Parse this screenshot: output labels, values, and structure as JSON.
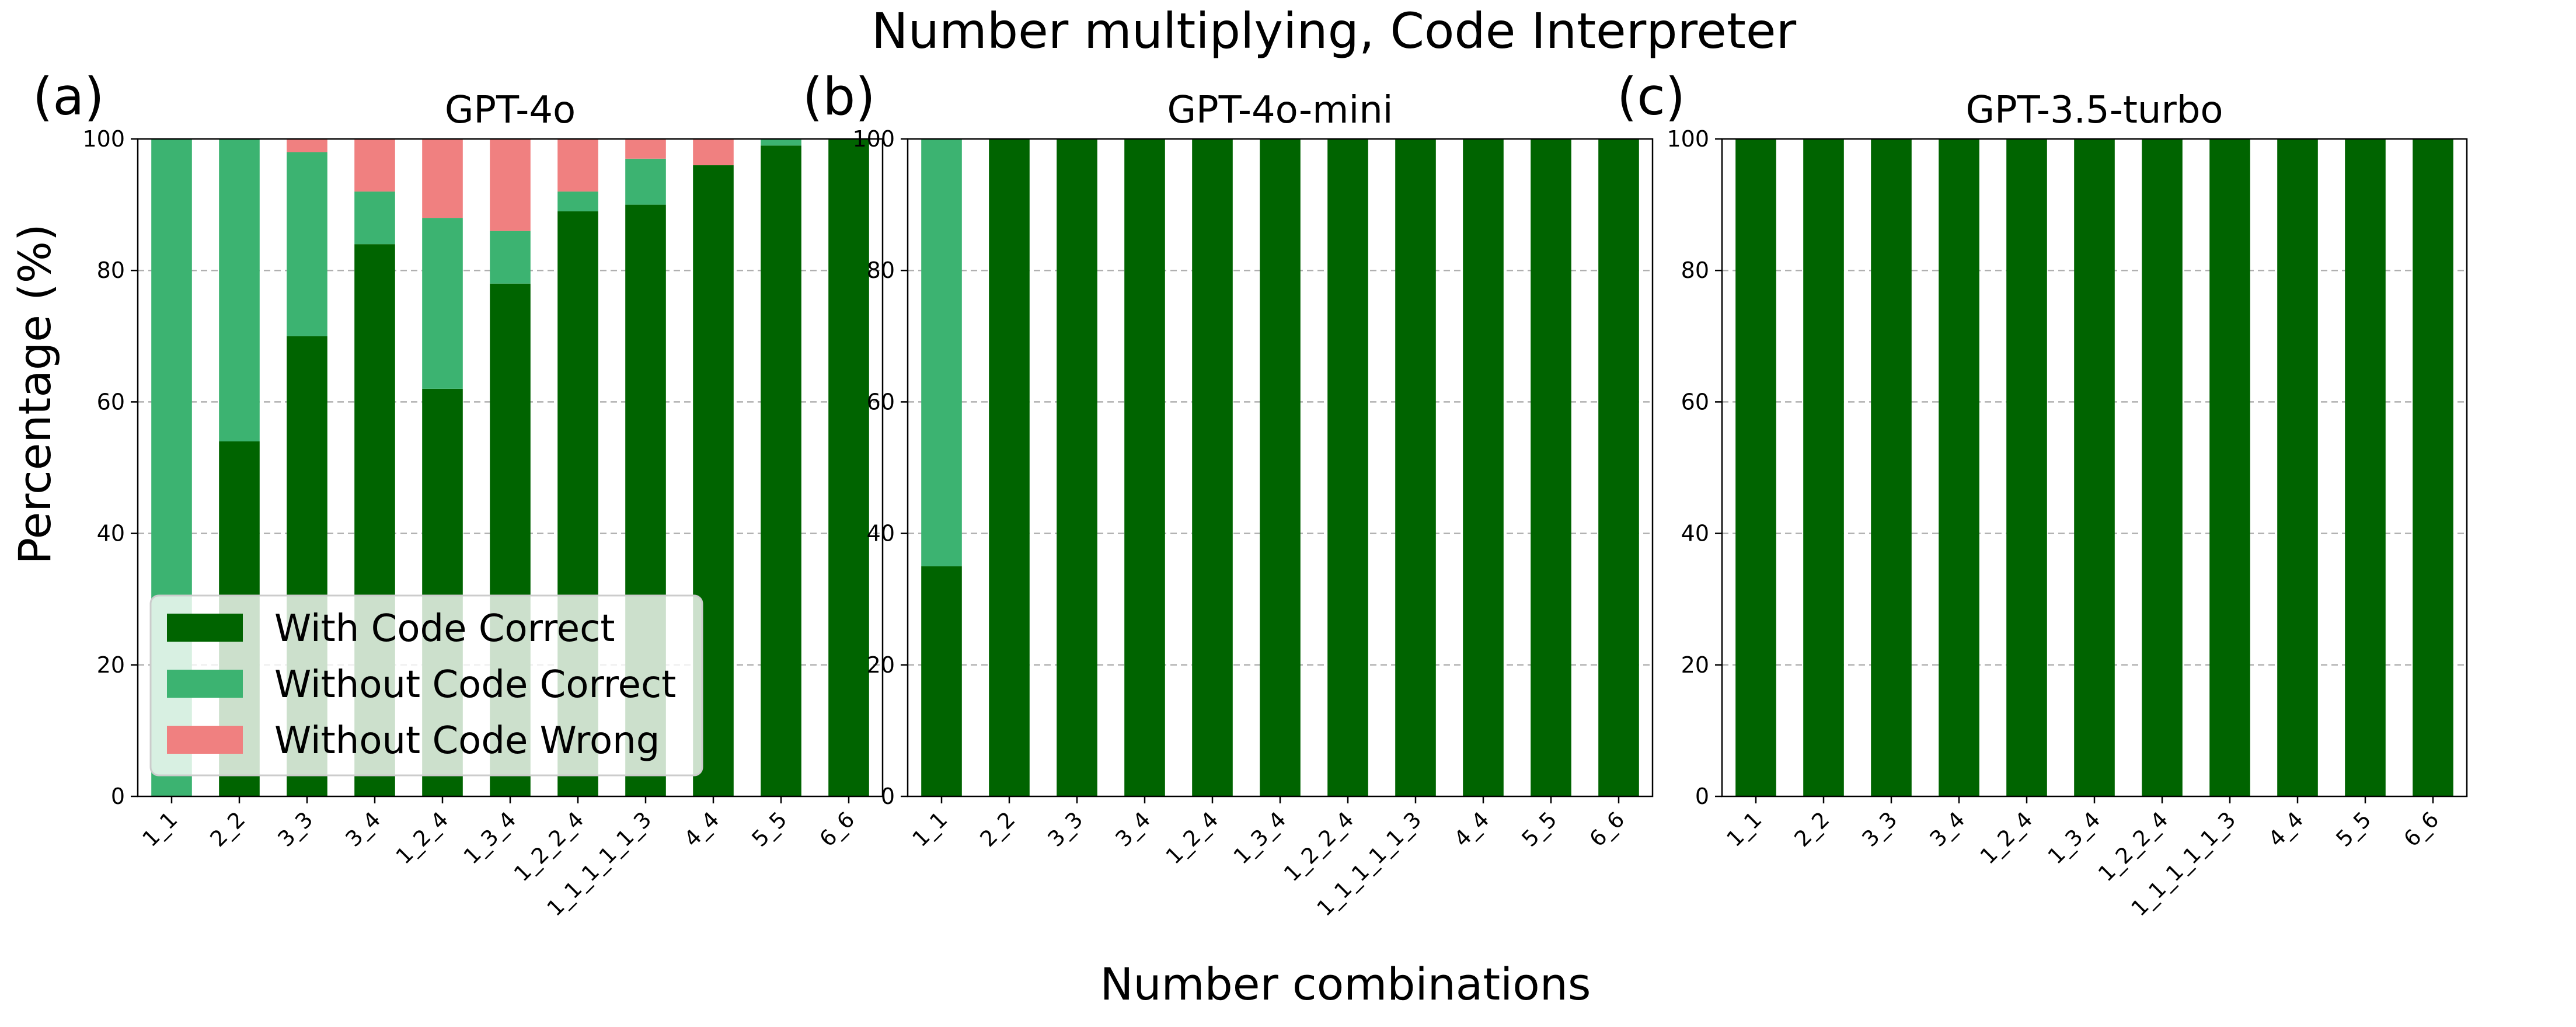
{
  "figure": {
    "title": "Number multiplying, Code Interpreter",
    "xlabel": "Number combinations",
    "ylabel": "Percentage (%)"
  },
  "colors": {
    "with_code_correct": "#006400",
    "without_code_correct": "#3cb371",
    "without_code_wrong": "#f08080",
    "grid": "#b0b0b0"
  },
  "legend": {
    "placement": "lower-left",
    "entries": [
      "With Code Correct",
      "Without Code Correct",
      "Without Code Wrong"
    ]
  },
  "chart_data": [
    {
      "type": "bar",
      "stacked": true,
      "panel_label": "(a)",
      "title": "GPT-4o",
      "categories": [
        "1_1",
        "2_2",
        "3_3",
        "3_4",
        "1_2_4",
        "1_3_4",
        "1_2_2_4",
        "1_1_1_1_1_3",
        "4_4",
        "5_5",
        "6_6"
      ],
      "series": [
        {
          "name": "With Code Correct",
          "values": [
            0,
            54,
            70,
            84,
            62,
            78,
            89,
            90,
            96,
            99,
            100
          ]
        },
        {
          "name": "Without Code Correct",
          "values": [
            100,
            46,
            28,
            8,
            26,
            8,
            3,
            7,
            0,
            1,
            0
          ]
        },
        {
          "name": "Without Code Wrong",
          "values": [
            0,
            0,
            2,
            8,
            12,
            14,
            8,
            3,
            4,
            0,
            0
          ]
        }
      ],
      "ylim": [
        0,
        100
      ],
      "yticks": [
        "0",
        "20",
        "40",
        "60",
        "80",
        "100"
      ],
      "grid": true
    },
    {
      "type": "bar",
      "stacked": true,
      "panel_label": "(b)",
      "title": "GPT-4o-mini",
      "categories": [
        "1_1",
        "2_2",
        "3_3",
        "3_4",
        "1_2_4",
        "1_3_4",
        "1_2_2_4",
        "1_1_1_1_1_3",
        "4_4",
        "5_5",
        "6_6"
      ],
      "series": [
        {
          "name": "With Code Correct",
          "values": [
            35,
            100,
            100,
            100,
            100,
            100,
            100,
            100,
            100,
            100,
            100
          ]
        },
        {
          "name": "Without Code Correct",
          "values": [
            65,
            0,
            0,
            0,
            0,
            0,
            0,
            0,
            0,
            0,
            0
          ]
        },
        {
          "name": "Without Code Wrong",
          "values": [
            0,
            0,
            0,
            0,
            0,
            0,
            0,
            0,
            0,
            0,
            0
          ]
        }
      ],
      "ylim": [
        0,
        100
      ],
      "yticks": [
        "0",
        "20",
        "40",
        "60",
        "80",
        "100"
      ],
      "grid": true
    },
    {
      "type": "bar",
      "stacked": true,
      "panel_label": "(c)",
      "title": "GPT-3.5-turbo",
      "categories": [
        "1_1",
        "2_2",
        "3_3",
        "3_4",
        "1_2_4",
        "1_3_4",
        "1_2_2_4",
        "1_1_1_1_1_3",
        "4_4",
        "5_5",
        "6_6"
      ],
      "series": [
        {
          "name": "With Code Correct",
          "values": [
            100,
            100,
            100,
            100,
            100,
            100,
            100,
            100,
            100,
            100,
            100
          ]
        },
        {
          "name": "Without Code Correct",
          "values": [
            0,
            0,
            0,
            0,
            0,
            0,
            0,
            0,
            0,
            0,
            0
          ]
        },
        {
          "name": "Without Code Wrong",
          "values": [
            0,
            0,
            0,
            0,
            0,
            0,
            0,
            0,
            0,
            0,
            0
          ]
        }
      ],
      "ylim": [
        0,
        100
      ],
      "yticks": [
        "0",
        "20",
        "40",
        "60",
        "80",
        "100"
      ],
      "grid": true
    }
  ]
}
